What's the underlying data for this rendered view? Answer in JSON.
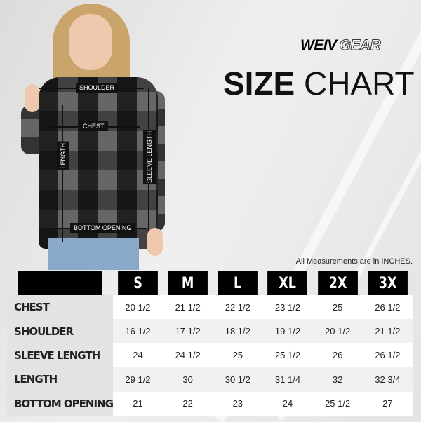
{
  "brand": {
    "word1": "WEIV",
    "word2": "GEAR"
  },
  "title": {
    "bold": "SIZE",
    "light": "CHART"
  },
  "note": "All Measurements are in INCHES.",
  "photo_labels": {
    "shoulder": "SHOULDER",
    "chest": "CHEST",
    "length": "LENGTH",
    "sleeve_length": "SLEEVE LENGTH",
    "bottom_opening": "BOTTOM OPENING"
  },
  "table": {
    "sizes": [
      "S",
      "M",
      "L",
      "XL",
      "2X",
      "3X"
    ],
    "rows": [
      {
        "label": "CHEST",
        "values": [
          "20 1/2",
          "21 1/2",
          "22 1/2",
          "23 1/2",
          "25",
          "26 1/2"
        ]
      },
      {
        "label": "SHOULDER",
        "values": [
          "16 1/2",
          "17 1/2",
          "18 1/2",
          "19 1/2",
          "20 1/2",
          "21 1/2"
        ]
      },
      {
        "label": "SLEEVE LENGTH",
        "values": [
          "24",
          "24 1/2",
          "25",
          "25 1/2",
          "26",
          "26 1/2"
        ]
      },
      {
        "label": "LENGTH",
        "values": [
          "29 1/2",
          "30",
          "30 1/2",
          "31 1/4",
          "32",
          "32 3/4"
        ]
      },
      {
        "label": "BOTTOM OPENING",
        "values": [
          "21",
          "22",
          "23",
          "24",
          "25 1/2",
          "27"
        ]
      }
    ]
  }
}
